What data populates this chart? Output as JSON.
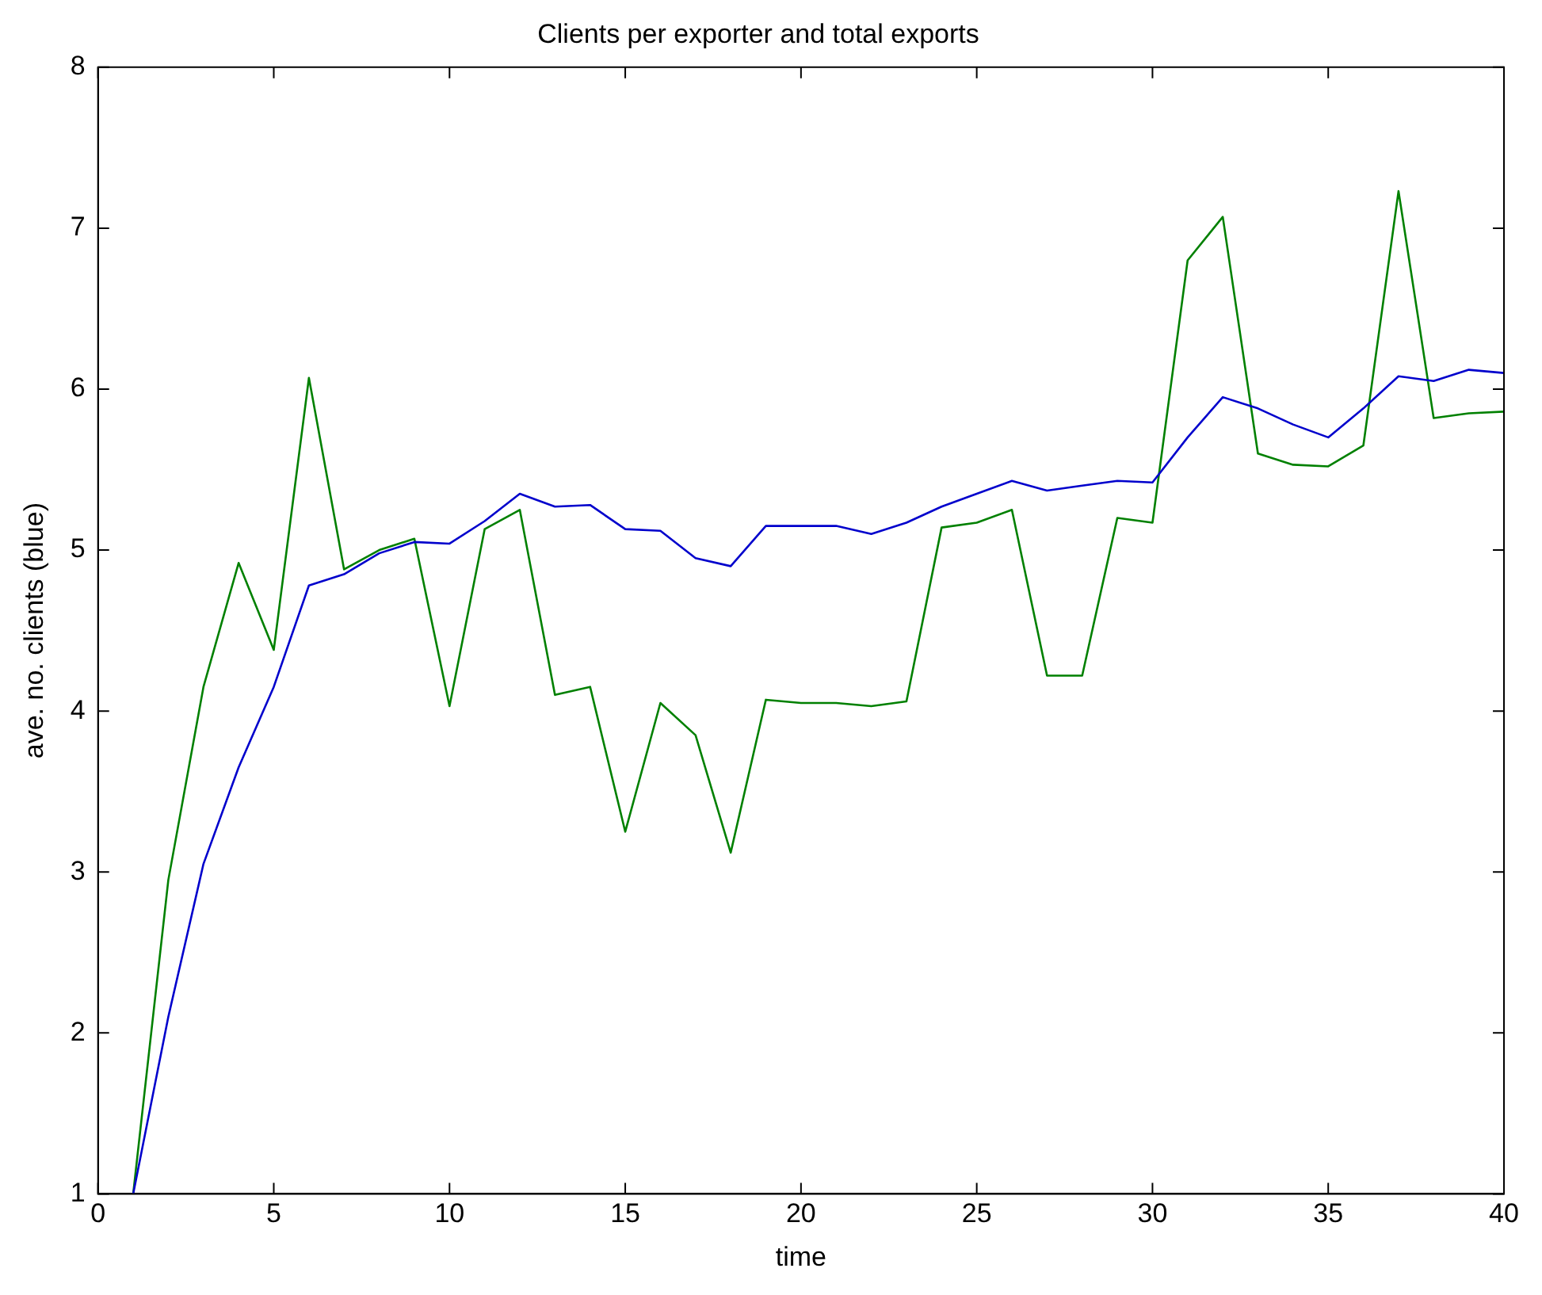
{
  "chart_data": {
    "type": "line",
    "title": "Clients per exporter and total exports",
    "xlabel": "time",
    "ylabel": "ave. no. clients (blue)",
    "x": [
      1,
      2,
      3,
      4,
      5,
      6,
      7,
      8,
      9,
      10,
      11,
      12,
      13,
      14,
      15,
      16,
      17,
      18,
      19,
      20,
      21,
      22,
      23,
      24,
      25,
      26,
      27,
      28,
      29,
      30,
      31,
      32,
      33,
      34,
      35,
      36,
      37,
      38,
      39,
      40
    ],
    "series": [
      {
        "color": "#0000cc",
        "values": [
          1.0,
          2.1,
          3.05,
          3.65,
          4.15,
          4.78,
          4.85,
          4.98,
          5.05,
          5.04,
          5.18,
          5.35,
          5.27,
          5.28,
          5.13,
          5.12,
          4.95,
          4.9,
          5.15,
          5.15,
          5.15,
          5.1,
          5.17,
          5.27,
          5.35,
          5.43,
          5.37,
          5.4,
          5.43,
          5.42,
          5.7,
          5.95,
          5.88,
          5.78,
          5.7,
          5.88,
          6.08,
          6.05,
          6.12,
          6.1
        ]
      },
      {
        "color": "#008000",
        "values": [
          1.0,
          2.95,
          4.15,
          4.92,
          4.38,
          6.07,
          4.88,
          5.0,
          5.07,
          4.03,
          5.13,
          5.25,
          4.1,
          4.15,
          3.25,
          4.05,
          3.85,
          3.12,
          4.07,
          4.05,
          4.05,
          4.03,
          4.06,
          5.14,
          5.17,
          5.25,
          4.22,
          4.22,
          5.2,
          5.17,
          6.8,
          7.07,
          5.6,
          5.53,
          5.52,
          5.65,
          7.23,
          5.82,
          5.85,
          5.86
        ]
      }
    ],
    "xlim": [
      0,
      40
    ],
    "xticks": [
      0,
      5,
      10,
      15,
      20,
      25,
      30,
      35,
      40
    ],
    "ylim": [
      1,
      8
    ],
    "yticks": [
      1,
      2,
      3,
      4,
      5,
      6,
      7,
      8
    ],
    "grid": false,
    "legend": false,
    "marker": "none",
    "line_style": "solid"
  }
}
